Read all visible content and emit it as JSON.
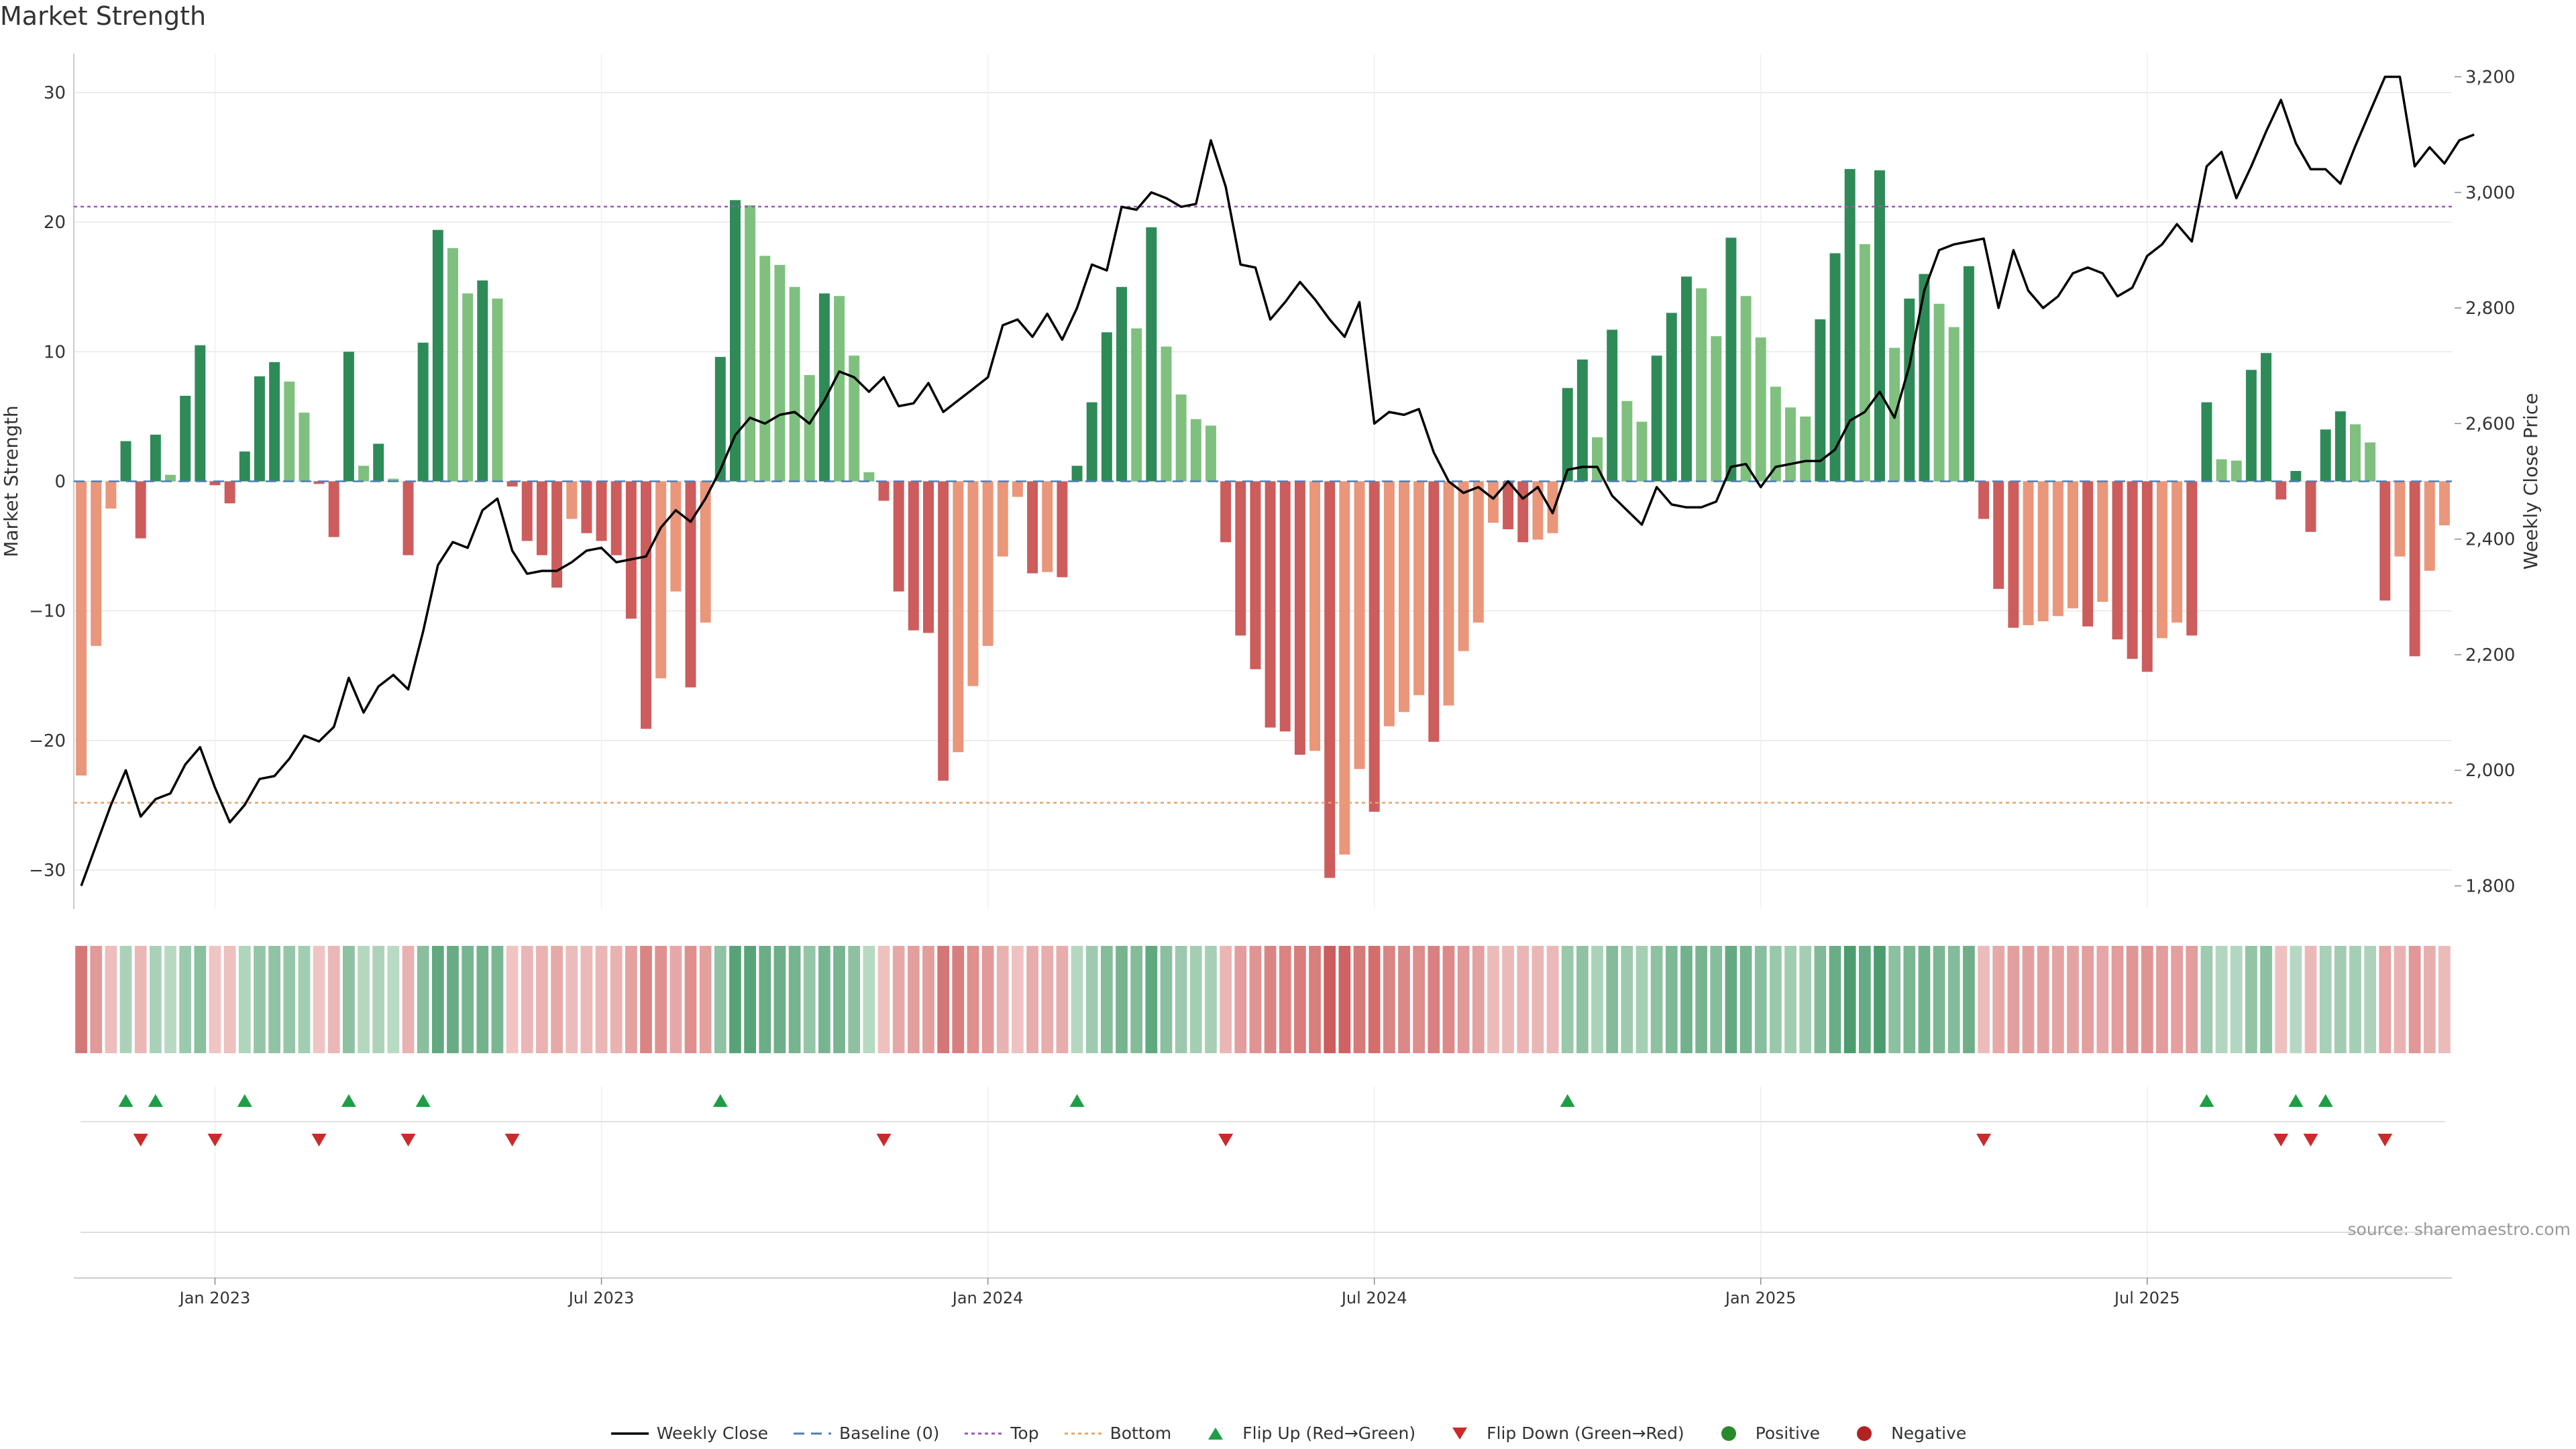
{
  "title": "Market Strength",
  "source": "source: sharemaestro.com",
  "chart_data": {
    "type": "bar",
    "y_left": {
      "label": "Market Strength",
      "min": -33,
      "max": 33,
      "ticks": [
        30,
        20,
        10,
        0,
        -10,
        -20,
        -30
      ],
      "tick_labels": [
        "30",
        "20",
        "10",
        "0",
        "−10",
        "−20",
        "−30"
      ]
    },
    "y_right": {
      "label": "Weekly Close Price",
      "min": 1760,
      "max": 3240,
      "ticks": [
        3200,
        3000,
        2800,
        2600,
        2400,
        2200,
        2000,
        1800
      ],
      "tick_labels": [
        "3,200",
        "3,000",
        "2,800",
        "2,600",
        "2,400",
        "2,200",
        "2,000",
        "1,800"
      ]
    },
    "x_ticks": [
      {
        "label": "Jan 2023",
        "index": 9
      },
      {
        "label": "Jul 2023",
        "index": 35
      },
      {
        "label": "Jan 2024",
        "index": 61
      },
      {
        "label": "Jul 2024",
        "index": 87
      },
      {
        "label": "Jan 2025",
        "index": 113
      },
      {
        "label": "Jul 2025",
        "index": 139
      }
    ],
    "reference_lines": {
      "baseline": 0,
      "top": 21.2,
      "bottom": -24.8
    },
    "strength": [
      -22.7,
      -12.7,
      -2.1,
      3.1,
      -4.4,
      3.6,
      0.5,
      6.6,
      10.5,
      -0.3,
      -1.7,
      2.3,
      8.1,
      9.2,
      7.7,
      5.3,
      -0.2,
      -4.3,
      10.0,
      1.2,
      2.9,
      0.2,
      -5.7,
      10.7,
      19.4,
      18.0,
      14.5,
      15.5,
      14.1,
      -0.4,
      -4.6,
      -5.7,
      -8.2,
      -2.9,
      -4.0,
      -4.6,
      -5.7,
      -10.6,
      -19.1,
      -15.2,
      -8.5,
      -15.9,
      -10.9,
      9.6,
      21.7,
      21.3,
      17.4,
      16.7,
      15.0,
      8.2,
      14.5,
      14.3,
      9.7,
      0.7,
      -1.5,
      -8.5,
      -11.5,
      -11.7,
      -23.1,
      -20.9,
      -15.8,
      -12.7,
      -5.8,
      -1.2,
      -7.1,
      -7.0,
      -7.4,
      1.2,
      6.1,
      11.5,
      15.0,
      11.8,
      19.6,
      10.4,
      6.7,
      4.8,
      4.3,
      -4.7,
      -11.9,
      -14.5,
      -19.0,
      -19.3,
      -21.1,
      -20.8,
      -30.6,
      -28.8,
      -22.2,
      -25.5,
      -18.9,
      -17.8,
      -16.5,
      -20.1,
      -17.3,
      -13.1,
      -10.9,
      -3.2,
      -3.7,
      -4.7,
      -4.5,
      -4.0,
      7.2,
      9.4,
      3.4,
      11.7,
      6.2,
      4.6,
      9.7,
      13.0,
      15.8,
      14.9,
      11.2,
      18.8,
      14.3,
      11.1,
      7.3,
      5.7,
      5.0,
      12.5,
      17.6,
      24.1,
      18.3,
      24.0,
      10.3,
      14.1,
      16.0,
      13.7,
      11.9,
      16.6,
      -2.9,
      -8.3,
      -11.3,
      -11.1,
      -10.8,
      -10.4,
      -9.8,
      -11.2,
      -9.3,
      -12.2,
      -13.7,
      -14.7,
      -12.1,
      -10.9,
      -11.9,
      6.1,
      1.7,
      1.6,
      8.6,
      9.9,
      -1.4,
      0.8,
      -3.9,
      4.0,
      5.4,
      4.4,
      3.0,
      -9.2,
      -5.8,
      -13.5,
      -6.9,
      -3.4
    ],
    "close": [
      1800,
      1870,
      1940,
      2000,
      1920,
      1950,
      1960,
      2010,
      2040,
      1970,
      1910,
      1940,
      1985,
      1990,
      2020,
      2060,
      2050,
      2075,
      2160,
      2100,
      2145,
      2165,
      2140,
      2240,
      2355,
      2395,
      2385,
      2450,
      2470,
      2380,
      2340,
      2345,
      2345,
      2360,
      2380,
      2385,
      2360,
      2365,
      2370,
      2420,
      2450,
      2430,
      2470,
      2520,
      2580,
      2610,
      2600,
      2615,
      2620,
      2600,
      2640,
      2690,
      2680,
      2655,
      2680,
      2630,
      2635,
      2670,
      2620,
      2640,
      2660,
      2680,
      2770,
      2780,
      2750,
      2790,
      2745,
      2800,
      2875,
      2865,
      2975,
      2970,
      3000,
      2990,
      2975,
      2980,
      3090,
      3010,
      2875,
      2870,
      2780,
      2810,
      2845,
      2815,
      2780,
      2750,
      2810,
      2600,
      2620,
      2615,
      2625,
      2550,
      2500,
      2480,
      2490,
      2470,
      2500,
      2470,
      2490,
      2445,
      2520,
      2525,
      2525,
      2475,
      2450,
      2425,
      2490,
      2460,
      2455,
      2455,
      2465,
      2525,
      2530,
      2490,
      2525,
      2530,
      2535,
      2535,
      2555,
      2605,
      2620,
      2655,
      2610,
      2700,
      2830,
      2900,
      2910,
      2915,
      2920,
      2800,
      2900,
      2830,
      2800,
      2820,
      2860,
      2870,
      2860,
      2820,
      2835,
      2890,
      2910,
      2945,
      2915,
      3045,
      3070,
      2990,
      3045,
      3105,
      3160,
      3085,
      3040,
      3040,
      3015,
      3080,
      3140,
      3200,
      3200,
      3045,
      3078,
      3050,
      3090,
      3100
    ]
  },
  "palette": {
    "pos_strong": "#2e8b57",
    "pos_light": "#7fc07f",
    "neg_strong": "#cd5c5c",
    "neg_light": "#e9967a",
    "price_line": "#000000",
    "baseline": "#4f7fb3",
    "top_line": "#9b59b6",
    "bottom_line": "#e8a46a",
    "flip_up": "#1e9e45",
    "flip_down": "#cc2a2a"
  },
  "legend": [
    {
      "label": "Weekly Close",
      "key": "close"
    },
    {
      "label": "Baseline (0)",
      "key": "baseline"
    },
    {
      "label": "Top",
      "key": "top"
    },
    {
      "label": "Bottom",
      "key": "bottom"
    },
    {
      "label": "Flip Up (Red→Green)",
      "key": "flipup"
    },
    {
      "label": "Flip Down (Green→Red)",
      "key": "flipdown"
    },
    {
      "label": "Positive",
      "key": "positive"
    },
    {
      "label": "Negative",
      "key": "negative"
    }
  ]
}
